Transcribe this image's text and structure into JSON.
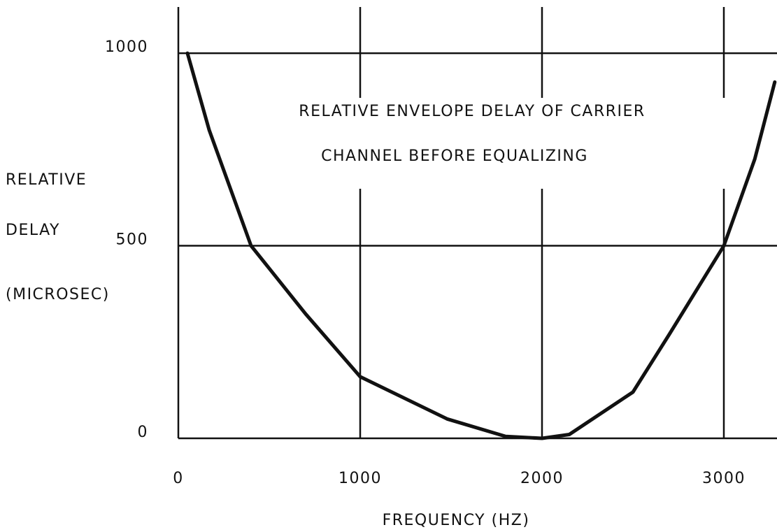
{
  "chart_data": {
    "type": "line",
    "annotation": [
      "RELATIVE ENVELOPE DELAY OF CARRIER",
      "CHANNEL BEFORE EQUALIZING"
    ],
    "ylabel": [
      "RELATIVE",
      "DELAY",
      "(MICROSEC)"
    ],
    "xlabel": "FREQUENCY (HZ)",
    "x": [
      50,
      170,
      400,
      700,
      1000,
      1480,
      1800,
      2000,
      2150,
      2500,
      2700,
      3000,
      3170,
      3280
    ],
    "values": [
      1000,
      800,
      500,
      323,
      160,
      50,
      5,
      0,
      10,
      120,
      270,
      500,
      725,
      925
    ],
    "color": "#111111",
    "xlim": [
      0,
      3300
    ],
    "ylim": [
      0,
      1120
    ],
    "xticks": [
      0,
      1000,
      2000,
      3000
    ],
    "yticks": [
      0,
      500,
      1000
    ],
    "grid": true
  }
}
